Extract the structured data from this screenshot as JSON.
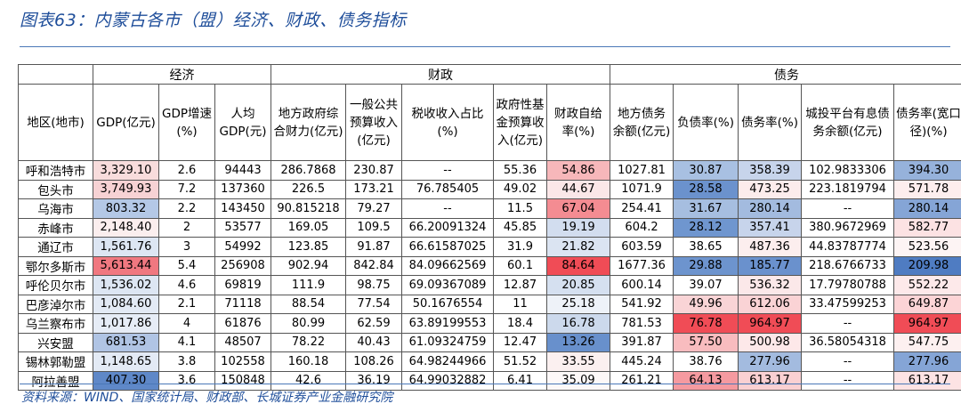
{
  "title": "图表63：内蒙古各市（盟）经济、财政、债务指标",
  "source": "资料来源：WIND、国家统计局、财政部、长城证券产业金融研究院",
  "groups": [
    {
      "label": "",
      "span": 1
    },
    {
      "label": "经济",
      "span": 3
    },
    {
      "label": "财政",
      "span": 5
    },
    {
      "label": "债务",
      "span": 5
    }
  ],
  "columns": [
    "地区(地市)",
    "GDP(亿元)",
    "GDP增速(%)",
    "人均GDP(元)",
    "地方政府综合财力(亿元)",
    "一般公共预算收入(亿元)",
    "税收收入占比(%)",
    "政府性基金预算收入(亿元)",
    "财政自给率(%)",
    "地方债务余额(亿元)",
    "负债率(%)",
    "债务率(%)",
    "城投平台有息债务余额(亿元)",
    "债务率(宽口径)(%)"
  ],
  "rows": [
    [
      "呼和浩特市",
      "3,329.10",
      "2.6",
      "94443",
      "286.7868",
      "230.87",
      "--",
      "55.36",
      "54.86",
      "1027.81",
      "30.87",
      "358.39",
      "102.9833306",
      "394.30"
    ],
    [
      "包头市",
      "3,749.93",
      "7.2",
      "137360",
      "226.5",
      "173.21",
      "76.785405",
      "49.02",
      "44.67",
      "1071.9",
      "28.58",
      "473.25",
      "223.1819794",
      "571.78"
    ],
    [
      "乌海市",
      "803.32",
      "2.2",
      "143450",
      "90.815218",
      "79.27",
      "--",
      "11.5",
      "67.04",
      "254.41",
      "31.67",
      "280.14",
      "--",
      "280.14"
    ],
    [
      "赤峰市",
      "2,148.40",
      "2",
      "53577",
      "169.05",
      "109.5",
      "66.20091324",
      "45.85",
      "19.19",
      "604.2",
      "28.12",
      "357.41",
      "380.9672969",
      "582.77"
    ],
    [
      "通辽市",
      "1,561.76",
      "3",
      "54992",
      "123.85",
      "91.87",
      "66.61587025",
      "31.9",
      "21.82",
      "603.59",
      "38.65",
      "487.36",
      "44.83787774",
      "523.56"
    ],
    [
      "鄂尔多斯市",
      "5,613.44",
      "5.4",
      "256908",
      "902.94",
      "842.84",
      "84.09662569",
      "60.1",
      "84.64",
      "1677.36",
      "29.88",
      "185.77",
      "218.6766733",
      "209.98"
    ],
    [
      "呼伦贝尔市",
      "1,536.02",
      "4.6",
      "69819",
      "111.9",
      "98.75",
      "69.09367089",
      "12.87",
      "20.85",
      "600.14",
      "39.07",
      "536.32",
      "17.79780788",
      "552.22"
    ],
    [
      "巴彦淖尔市",
      "1,084.60",
      "2.1",
      "71118",
      "88.54",
      "77.54",
      "50.1676554",
      "11",
      "25.18",
      "541.92",
      "49.96",
      "612.06",
      "33.47599253",
      "649.87"
    ],
    [
      "乌兰察布市",
      "1,017.86",
      "4",
      "61876",
      "80.99",
      "62.59",
      "63.89199553",
      "18.4",
      "16.78",
      "781.53",
      "76.78",
      "964.97",
      "--",
      "964.97"
    ],
    [
      "兴安盟",
      "681.53",
      "4.1",
      "48507",
      "78.22",
      "40.43",
      "61.09324759",
      "12.47",
      "13.26",
      "391.87",
      "57.50",
      "500.98",
      "36.58054318",
      "547.75"
    ],
    [
      "锡林郭勒盟",
      "1,148.65",
      "3.8",
      "102558",
      "160.18",
      "108.26",
      "64.98244966",
      "51.52",
      "33.55",
      "445.24",
      "38.76",
      "277.96",
      "--",
      "277.96"
    ],
    [
      "阿拉善盟",
      "407.30",
      "3.6",
      "150848",
      "42.6",
      "36.19",
      "64.99032882",
      "6.41",
      "35.09",
      "261.21",
      "64.13",
      "613.17",
      "--",
      "613.17"
    ]
  ],
  "cell_colors": {
    "1": [
      "#f8dcdc",
      "#f7d2d4",
      "#b4c8e6",
      "#fbeeee",
      "#dde6f3",
      "#f07880",
      "#dde6f3",
      "#e3eaf5",
      "#e6ecf6",
      "#b0c4e4",
      "#e3eaf5",
      "#5f88c8"
    ],
    "8": [
      "#f7b7ba",
      "#fbe7e8",
      "#f48c92",
      "#d2ddef",
      "#dbe4f2",
      "#f04c56",
      "#d5e0f0",
      "#eef2f8",
      "#ccd9ec",
      "#6890cc",
      "#fbf0f0",
      "#fdf8f8"
    ],
    "10": [
      "#a8c0e2",
      "#6b92cd",
      "#a6bee0",
      "#6f96cf",
      "#ffffff",
      "#6d94ce",
      "#ffffff",
      "#f9d4d6",
      "#f04c56",
      "#f8bcbf",
      "#ffffff",
      "#f59aa0"
    ],
    "11": [
      "#c7d4eb",
      "#fcecec",
      "#a3bbdf",
      "#c7d4eb",
      "#fceeee",
      "#6a91cd",
      "#fbe8e9",
      "#fad3d5",
      "#f04c56",
      "#fde8e9",
      "#a3bbdf",
      "#fad0d2"
    ],
    "13": [
      "#96b2db",
      "#fdeeee",
      "#85a5d6",
      "#fce2e3",
      "#fdf4f4",
      "#4f7cc2",
      "#fde9ea",
      "#fcd4d6",
      "#f04c56",
      "#fdf0f0",
      "#85a5d6",
      "#fde3e4"
    ]
  }
}
